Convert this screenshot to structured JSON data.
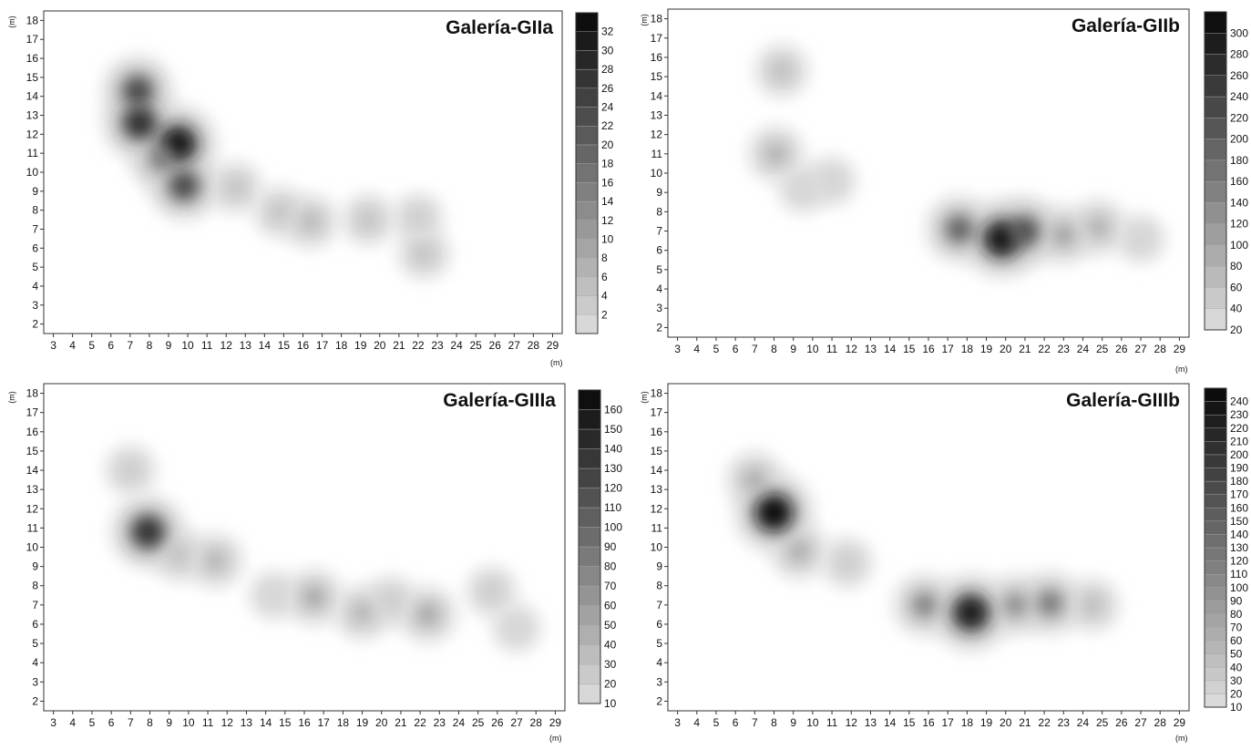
{
  "chart_data": [
    {
      "type": "heatmap",
      "title": "Galería-GIIa",
      "xlabel": "(m)",
      "ylabel": "(m)",
      "xlim": [
        2.5,
        29.5
      ],
      "ylim": [
        1.5,
        18.5
      ],
      "x_ticks": [
        3,
        4,
        5,
        6,
        7,
        8,
        9,
        10,
        11,
        12,
        13,
        14,
        15,
        16,
        17,
        18,
        19,
        20,
        21,
        22,
        23,
        24,
        25,
        26,
        27,
        28,
        29
      ],
      "y_ticks": [
        2,
        3,
        4,
        5,
        6,
        7,
        8,
        9,
        10,
        11,
        12,
        13,
        14,
        15,
        16,
        17,
        18
      ],
      "colorbar": {
        "min": 0,
        "max": 34,
        "ticks": [
          2,
          4,
          6,
          8,
          10,
          12,
          14,
          16,
          18,
          20,
          22,
          24,
          26,
          28,
          30,
          32
        ]
      },
      "hotspots": [
        {
          "x": 7.4,
          "y": 14.3,
          "value": 24
        },
        {
          "x": 7.5,
          "y": 12.6,
          "value": 28
        },
        {
          "x": 9.5,
          "y": 11.5,
          "value": 32
        },
        {
          "x": 9.8,
          "y": 9.3,
          "value": 24
        },
        {
          "x": 8.6,
          "y": 10.7,
          "value": 16
        },
        {
          "x": 12.5,
          "y": 9.2,
          "value": 6
        },
        {
          "x": 14.8,
          "y": 7.9,
          "value": 6
        },
        {
          "x": 16.4,
          "y": 7.4,
          "value": 8
        },
        {
          "x": 19.4,
          "y": 7.5,
          "value": 6
        },
        {
          "x": 22.3,
          "y": 5.7,
          "value": 6
        },
        {
          "x": 22.0,
          "y": 7.6,
          "value": 4
        }
      ]
    },
    {
      "type": "heatmap",
      "title": "Galería-GIIb",
      "xlabel": "(m)",
      "ylabel": "(m)",
      "xlim": [
        2.5,
        29.5
      ],
      "ylim": [
        1.5,
        18.5
      ],
      "x_ticks": [
        3,
        4,
        5,
        6,
        7,
        8,
        9,
        10,
        11,
        12,
        13,
        14,
        15,
        16,
        17,
        18,
        19,
        20,
        21,
        22,
        23,
        24,
        25,
        26,
        27,
        28,
        29
      ],
      "y_ticks": [
        2,
        3,
        4,
        5,
        6,
        7,
        8,
        9,
        10,
        11,
        12,
        13,
        14,
        15,
        16,
        17,
        18
      ],
      "colorbar": {
        "min": 20,
        "max": 320,
        "ticks": [
          20,
          40,
          60,
          80,
          100,
          120,
          140,
          160,
          180,
          200,
          220,
          240,
          260,
          280,
          300
        ]
      },
      "hotspots": [
        {
          "x": 8.4,
          "y": 15.3,
          "value": 80
        },
        {
          "x": 8.1,
          "y": 11.0,
          "value": 100
        },
        {
          "x": 9.5,
          "y": 9.2,
          "value": 40
        },
        {
          "x": 11.0,
          "y": 9.6,
          "value": 40
        },
        {
          "x": 17.6,
          "y": 7.1,
          "value": 200
        },
        {
          "x": 19.8,
          "y": 6.6,
          "value": 300
        },
        {
          "x": 21.0,
          "y": 7.0,
          "value": 220
        },
        {
          "x": 23.0,
          "y": 6.8,
          "value": 120
        },
        {
          "x": 24.8,
          "y": 7.2,
          "value": 100
        },
        {
          "x": 27.0,
          "y": 6.6,
          "value": 40
        }
      ]
    },
    {
      "type": "heatmap",
      "title": "Galería-GIIIa",
      "xlabel": "(m)",
      "ylabel": "(m)",
      "xlim": [
        2.5,
        29.5
      ],
      "ylim": [
        1.5,
        18.5
      ],
      "x_ticks": [
        3,
        4,
        5,
        6,
        7,
        8,
        9,
        10,
        11,
        12,
        13,
        14,
        15,
        16,
        17,
        18,
        19,
        20,
        21,
        22,
        23,
        24,
        25,
        26,
        27,
        28,
        29
      ],
      "y_ticks": [
        2,
        3,
        4,
        5,
        6,
        7,
        8,
        9,
        10,
        11,
        12,
        13,
        14,
        15,
        16,
        17,
        18
      ],
      "colorbar": {
        "min": 10,
        "max": 170,
        "ticks": [
          10,
          20,
          30,
          40,
          50,
          60,
          70,
          80,
          90,
          100,
          110,
          120,
          130,
          140,
          150,
          160
        ]
      },
      "hotspots": [
        {
          "x": 7.0,
          "y": 14.0,
          "value": 30
        },
        {
          "x": 7.9,
          "y": 10.8,
          "value": 140
        },
        {
          "x": 9.5,
          "y": 9.6,
          "value": 40
        },
        {
          "x": 11.4,
          "y": 9.3,
          "value": 50
        },
        {
          "x": 14.4,
          "y": 7.5,
          "value": 20
        },
        {
          "x": 16.5,
          "y": 7.4,
          "value": 60
        },
        {
          "x": 19.0,
          "y": 6.6,
          "value": 50
        },
        {
          "x": 20.5,
          "y": 7.2,
          "value": 30
        },
        {
          "x": 22.4,
          "y": 6.5,
          "value": 60
        },
        {
          "x": 25.7,
          "y": 7.7,
          "value": 30
        },
        {
          "x": 27.0,
          "y": 5.8,
          "value": 20
        }
      ]
    },
    {
      "type": "heatmap",
      "title": "Galería-GIIIb",
      "xlabel": "(m)",
      "ylabel": "(m)",
      "xlim": [
        2.5,
        29.5
      ],
      "ylim": [
        1.5,
        18.5
      ],
      "x_ticks": [
        3,
        4,
        5,
        6,
        7,
        8,
        9,
        10,
        11,
        12,
        13,
        14,
        15,
        16,
        17,
        18,
        19,
        20,
        21,
        22,
        23,
        24,
        25,
        26,
        27,
        28,
        29
      ],
      "y_ticks": [
        2,
        3,
        4,
        5,
        6,
        7,
        8,
        9,
        10,
        11,
        12,
        13,
        14,
        15,
        16,
        17,
        18
      ],
      "colorbar": {
        "min": 10,
        "max": 250,
        "ticks": [
          10,
          20,
          30,
          40,
          50,
          60,
          70,
          80,
          90,
          100,
          110,
          120,
          130,
          140,
          150,
          160,
          170,
          180,
          190,
          200,
          210,
          220,
          230,
          240
        ]
      },
      "hotspots": [
        {
          "x": 8.0,
          "y": 11.8,
          "value": 240
        },
        {
          "x": 7.0,
          "y": 13.5,
          "value": 80
        },
        {
          "x": 9.3,
          "y": 9.8,
          "value": 80
        },
        {
          "x": 11.8,
          "y": 9.2,
          "value": 40
        },
        {
          "x": 15.8,
          "y": 7.0,
          "value": 120
        },
        {
          "x": 18.2,
          "y": 6.6,
          "value": 230
        },
        {
          "x": 20.5,
          "y": 7.0,
          "value": 110
        },
        {
          "x": 22.3,
          "y": 7.1,
          "value": 130
        },
        {
          "x": 24.5,
          "y": 7.0,
          "value": 60
        }
      ]
    }
  ]
}
